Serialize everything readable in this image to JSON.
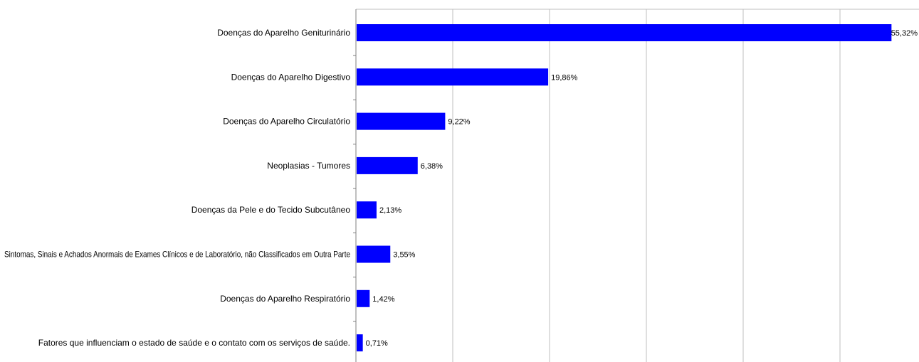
{
  "chart_data": {
    "type": "bar",
    "orientation": "horizontal",
    "categories": [
      "Doenças do Aparelho Geniturinário",
      "Doenças do Aparelho Digestivo",
      "Doenças do Aparelho Circulatório",
      "Neoplasias - Tumores",
      "Doenças da Pele e do Tecido Subcutâneo",
      "Sintomas, Sinais e Achados Anormais de Exames Clínicos e de Laboratório, não Classificados em Outra Parte",
      "Doenças do Aparelho Respiratório",
      "Fatores que influenciam o estado de saúde e o contato com os serviços de saúde."
    ],
    "values": [
      55.32,
      19.86,
      9.22,
      6.38,
      2.13,
      3.55,
      1.42,
      0.71
    ],
    "data_labels": [
      "55,32%",
      "19,86%",
      "9,22%",
      "6,38%",
      "2,13%",
      "3,55%",
      "1,42%",
      "0,71%"
    ],
    "xlim": [
      0,
      60
    ],
    "x_gridlines": [
      0,
      10,
      20,
      30,
      40,
      50,
      60
    ],
    "grid": true,
    "legend": "none",
    "bar_color": "#0000FF",
    "gridline_color": "#BFBFBF",
    "title": "",
    "xlabel": "",
    "ylabel": ""
  }
}
